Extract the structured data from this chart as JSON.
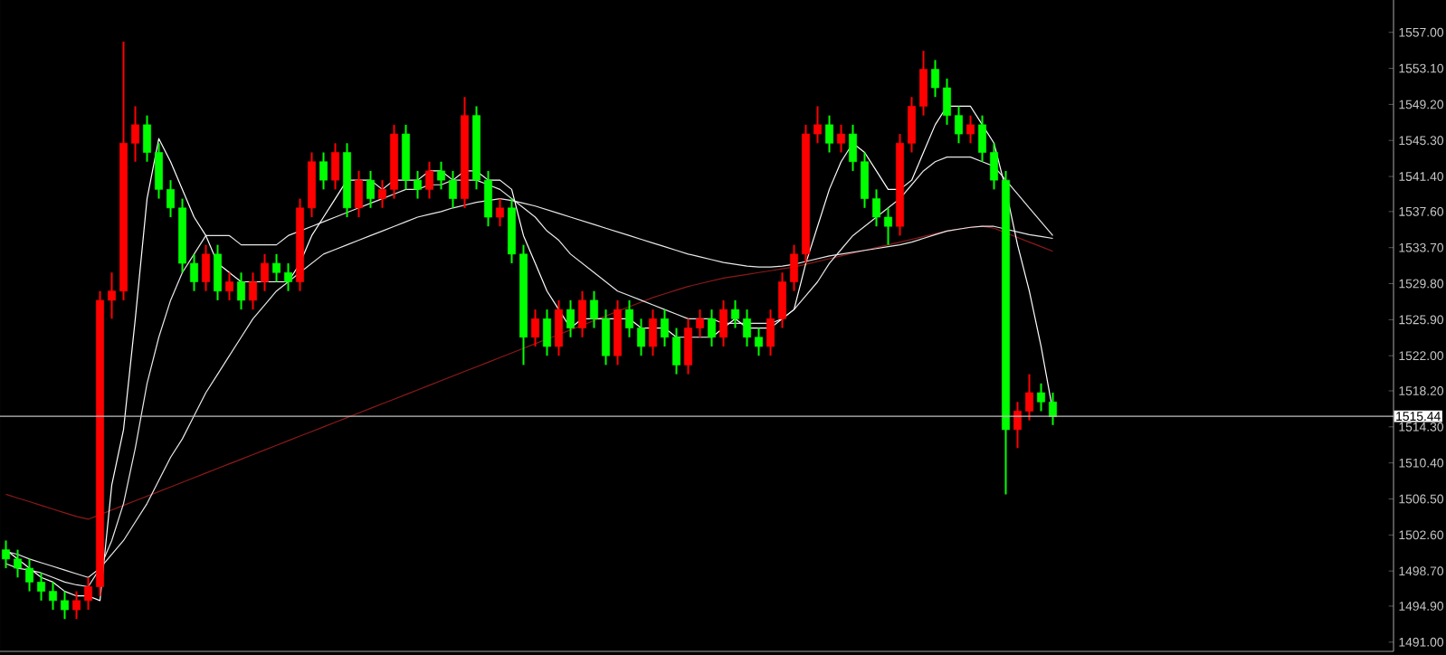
{
  "chart_data": {
    "type": "candlestick",
    "categories": [
      null,
      null,
      null,
      null,
      null,
      null,
      null,
      null,
      null,
      null,
      null,
      null,
      null,
      null,
      null,
      null,
      null,
      null,
      null,
      null,
      null,
      null,
      null,
      null,
      null,
      null,
      null,
      null,
      null,
      null,
      null,
      null,
      null,
      null,
      null,
      null,
      null,
      null,
      null,
      null,
      null,
      null,
      null,
      null,
      null,
      null,
      null,
      null,
      null,
      null,
      null,
      null,
      null,
      null,
      null,
      null,
      null,
      null,
      null,
      null,
      null,
      null,
      null,
      null,
      null,
      null,
      null,
      null,
      null,
      null,
      null,
      null,
      null,
      null,
      null,
      null,
      null,
      null,
      null,
      null,
      null,
      null,
      null,
      null,
      null,
      null,
      null,
      null,
      null,
      null
    ],
    "ohlc": [
      [
        1501,
        1502,
        1499,
        1500
      ],
      [
        1500,
        1501,
        1498,
        1499
      ],
      [
        1499,
        1500,
        1496.5,
        1497.5
      ],
      [
        1497.5,
        1498.5,
        1495.5,
        1496.5
      ],
      [
        1496.5,
        1497.5,
        1494.5,
        1495.5
      ],
      [
        1495.5,
        1496.5,
        1493.5,
        1494.5
      ],
      [
        1494.5,
        1496.5,
        1493.5,
        1495.5
      ],
      [
        1495.5,
        1498,
        1494.5,
        1497
      ],
      [
        1497,
        1529,
        1496,
        1528
      ],
      [
        1528,
        1531,
        1526,
        1529
      ],
      [
        1529,
        1556,
        1528,
        1545
      ],
      [
        1545,
        1549,
        1543,
        1547
      ],
      [
        1547,
        1548,
        1543,
        1544
      ],
      [
        1544,
        1545,
        1539,
        1540
      ],
      [
        1540,
        1541,
        1537,
        1538
      ],
      [
        1538,
        1539,
        1531,
        1532
      ],
      [
        1532,
        1533,
        1529,
        1530
      ],
      [
        1530,
        1534,
        1529,
        1533
      ],
      [
        1533,
        1534,
        1528,
        1529
      ],
      [
        1529,
        1531,
        1528,
        1530
      ],
      [
        1530,
        1531,
        1527,
        1528
      ],
      [
        1528,
        1531,
        1527,
        1530
      ],
      [
        1530,
        1533,
        1529,
        1532
      ],
      [
        1532,
        1533,
        1530,
        1531
      ],
      [
        1531,
        1532,
        1529,
        1530
      ],
      [
        1530,
        1539,
        1529,
        1538
      ],
      [
        1538,
        1544,
        1537,
        1543
      ],
      [
        1543,
        1544,
        1540,
        1541
      ],
      [
        1541,
        1545,
        1540,
        1544
      ],
      [
        1544,
        1545,
        1537,
        1538
      ],
      [
        1538,
        1542,
        1537,
        1541
      ],
      [
        1541,
        1542,
        1538,
        1539
      ],
      [
        1539,
        1541,
        1538,
        1540
      ],
      [
        1540,
        1547,
        1539,
        1546
      ],
      [
        1546,
        1547,
        1540,
        1541
      ],
      [
        1541,
        1542,
        1539,
        1540
      ],
      [
        1540,
        1543,
        1539,
        1542
      ],
      [
        1542,
        1543,
        1540,
        1541
      ],
      [
        1541,
        1542,
        1538,
        1539
      ],
      [
        1539,
        1550,
        1538,
        1548
      ],
      [
        1548,
        1549,
        1540,
        1541
      ],
      [
        1541,
        1542,
        1536,
        1537
      ],
      [
        1537,
        1539,
        1536,
        1538
      ],
      [
        1538,
        1539,
        1532,
        1533
      ],
      [
        1533,
        1534,
        1521,
        1524
      ],
      [
        1524,
        1527,
        1523,
        1526
      ],
      [
        1526,
        1527,
        1522,
        1523
      ],
      [
        1523,
        1528,
        1522,
        1527
      ],
      [
        1527,
        1528,
        1524,
        1525
      ],
      [
        1525,
        1529,
        1524,
        1528
      ],
      [
        1528,
        1529,
        1525,
        1526
      ],
      [
        1526,
        1527,
        1521,
        1522
      ],
      [
        1522,
        1528,
        1521,
        1527
      ],
      [
        1527,
        1528,
        1524,
        1525
      ],
      [
        1525,
        1526,
        1522,
        1523
      ],
      [
        1523,
        1527,
        1522,
        1526
      ],
      [
        1526,
        1527,
        1523,
        1524
      ],
      [
        1524,
        1525,
        1520,
        1521
      ],
      [
        1521,
        1526,
        1520,
        1525
      ],
      [
        1525,
        1527,
        1524,
        1526
      ],
      [
        1526,
        1527,
        1523,
        1524
      ],
      [
        1524,
        1528,
        1523,
        1527
      ],
      [
        1527,
        1528,
        1525,
        1526
      ],
      [
        1526,
        1527,
        1523,
        1524
      ],
      [
        1524,
        1525,
        1522,
        1523
      ],
      [
        1523,
        1527,
        1522,
        1526
      ],
      [
        1526,
        1531,
        1525,
        1530
      ],
      [
        1530,
        1534,
        1529,
        1533
      ],
      [
        1533,
        1547,
        1532,
        1546
      ],
      [
        1546,
        1549,
        1545,
        1547
      ],
      [
        1547,
        1548,
        1544,
        1545
      ],
      [
        1545,
        1547,
        1544,
        1546
      ],
      [
        1546,
        1547,
        1542,
        1543
      ],
      [
        1543,
        1544,
        1538,
        1539
      ],
      [
        1539,
        1540,
        1536,
        1537
      ],
      [
        1537,
        1538,
        1534,
        1536
      ],
      [
        1536,
        1546,
        1535,
        1545
      ],
      [
        1545,
        1550,
        1544,
        1549
      ],
      [
        1549,
        1555,
        1548,
        1553
      ],
      [
        1553,
        1554,
        1550,
        1551
      ],
      [
        1551,
        1552,
        1547,
        1548
      ],
      [
        1548,
        1549,
        1545,
        1546
      ],
      [
        1546,
        1548,
        1545,
        1547
      ],
      [
        1547,
        1548,
        1543,
        1544
      ],
      [
        1544,
        1545,
        1540,
        1541
      ],
      [
        1541,
        1542,
        1507,
        1514
      ],
      [
        1514,
        1517,
        1512,
        1516
      ],
      [
        1516,
        1520,
        1515,
        1518
      ],
      [
        1518,
        1519,
        1516,
        1517
      ],
      [
        1517,
        1518,
        1514.5,
        1515.4
      ]
    ],
    "colors": [
      "#00ff00",
      "#00ff00",
      "#00ff00",
      "#00ff00",
      "#00ff00",
      "#00ff00",
      "#ff0000",
      "#ff0000",
      "#ff0000",
      "#ff0000",
      "#ff0000",
      "#ff0000",
      "#00ff00",
      "#00ff00",
      "#00ff00",
      "#00ff00",
      "#00ff00",
      "#ff0000",
      "#00ff00",
      "#ff0000",
      "#00ff00",
      "#ff0000",
      "#ff0000",
      "#00ff00",
      "#00ff00",
      "#ff0000",
      "#ff0000",
      "#00ff00",
      "#ff0000",
      "#00ff00",
      "#ff0000",
      "#00ff00",
      "#ff0000",
      "#ff0000",
      "#00ff00",
      "#00ff00",
      "#ff0000",
      "#00ff00",
      "#00ff00",
      "#ff0000",
      "#00ff00",
      "#00ff00",
      "#ff0000",
      "#00ff00",
      "#00ff00",
      "#ff0000",
      "#00ff00",
      "#ff0000",
      "#00ff00",
      "#ff0000",
      "#00ff00",
      "#00ff00",
      "#ff0000",
      "#00ff00",
      "#00ff00",
      "#ff0000",
      "#00ff00",
      "#00ff00",
      "#ff0000",
      "#ff0000",
      "#00ff00",
      "#ff0000",
      "#00ff00",
      "#00ff00",
      "#00ff00",
      "#ff0000",
      "#ff0000",
      "#ff0000",
      "#ff0000",
      "#ff0000",
      "#00ff00",
      "#ff0000",
      "#00ff00",
      "#00ff00",
      "#00ff00",
      "#00ff00",
      "#ff0000",
      "#ff0000",
      "#ff0000",
      "#00ff00",
      "#00ff00",
      "#00ff00",
      "#ff0000",
      "#00ff00",
      "#00ff00",
      "#00ff00",
      "#ff0000",
      "#ff0000",
      "#00ff00",
      "#00ff00"
    ],
    "series": [
      {
        "type": "line",
        "color": "#8b1a1a",
        "values": [
          1507,
          1506.6,
          1506.2,
          1505.8,
          1505.4,
          1505,
          1504.6,
          1504.3,
          1504.8,
          1505.3,
          1505.8,
          1506.3,
          1506.8,
          1507.3,
          1507.8,
          1508.3,
          1508.8,
          1509.3,
          1509.8,
          1510.3,
          1510.8,
          1511.3,
          1511.8,
          1512.3,
          1512.8,
          1513.3,
          1513.8,
          1514.3,
          1514.8,
          1515.3,
          1515.8,
          1516.3,
          1516.8,
          1517.3,
          1517.8,
          1518.3,
          1518.8,
          1519.3,
          1519.8,
          1520.3,
          1520.8,
          1521.3,
          1521.8,
          1522.3,
          1522.8,
          1523.3,
          1523.8,
          1524.3,
          1524.8,
          1525.3,
          1525.8,
          1526.3,
          1526.8,
          1527.3,
          1527.8,
          1528.3,
          1528.7,
          1529.1,
          1529.5,
          1529.8,
          1530.1,
          1530.4,
          1530.6,
          1530.8,
          1531,
          1531.2,
          1531.4,
          1531.6,
          1531.9,
          1532.2,
          1532.5,
          1532.8,
          1533.1,
          1533.4,
          1533.7,
          1534,
          1534.3,
          1534.6,
          1534.9,
          1535.2,
          1535.5,
          1535.7,
          1535.9,
          1536,
          1535.8,
          1535.3,
          1534.8,
          1534.3,
          1533.8,
          1533.3
        ]
      },
      {
        "type": "line",
        "color": "#e8e8e8",
        "values": [
          1500.8,
          1500.5,
          1500,
          1499.6,
          1499.2,
          1498.8,
          1498.4,
          1498,
          1499,
          1500.5,
          1502,
          1504,
          1506,
          1508.5,
          1511,
          1513,
          1515.5,
          1518,
          1520,
          1522,
          1524,
          1526,
          1527.5,
          1529,
          1530,
          1531,
          1532,
          1533,
          1533.5,
          1534,
          1534.5,
          1535,
          1535.5,
          1536,
          1536.5,
          1537,
          1537.3,
          1537.6,
          1538,
          1538.3,
          1538.6,
          1538.8,
          1539,
          1538.8,
          1538.5,
          1538.2,
          1537.8,
          1537.4,
          1537,
          1536.6,
          1536.2,
          1535.8,
          1535.4,
          1535,
          1534.6,
          1534.2,
          1533.8,
          1533.4,
          1533,
          1532.7,
          1532.4,
          1532.1,
          1531.9,
          1531.7,
          1531.6,
          1531.6,
          1531.7,
          1531.9,
          1532.2,
          1532.5,
          1532.8,
          1533,
          1533.2,
          1533.4,
          1533.6,
          1533.8,
          1534,
          1534.3,
          1534.7,
          1535.1,
          1535.5,
          1535.7,
          1535.9,
          1536,
          1536,
          1535.7,
          1535.4,
          1535.1,
          1534.9,
          1534.7
        ]
      },
      {
        "type": "line",
        "color": "#e8e8e8",
        "values": [
          1499.5,
          1499,
          1498.8,
          1498.5,
          1498,
          1497.5,
          1497.2,
          1497,
          1499,
          1502,
          1506,
          1512,
          1519,
          1524,
          1528,
          1531,
          1533,
          1535,
          1535,
          1535,
          1534,
          1534,
          1534,
          1534,
          1535,
          1535.5,
          1536,
          1536.5,
          1537,
          1537.5,
          1538,
          1538.5,
          1539,
          1539.5,
          1540,
          1540,
          1540.5,
          1540.5,
          1541,
          1541,
          1541,
          1540.5,
          1540,
          1539,
          1538,
          1537,
          1535.5,
          1534.5,
          1533,
          1532,
          1531,
          1530,
          1529,
          1528.5,
          1528,
          1527.5,
          1527,
          1526.5,
          1526,
          1526,
          1526,
          1525.5,
          1525.5,
          1525.5,
          1525.5,
          1525.5,
          1526,
          1527,
          1528.5,
          1530,
          1532,
          1533.5,
          1535,
          1536,
          1537,
          1538,
          1539,
          1540.5,
          1542,
          1543,
          1543.5,
          1543.5,
          1543.5,
          1543,
          1542.5,
          1541,
          1539.5,
          1538,
          1536.5,
          1535
        ]
      },
      {
        "type": "line",
        "color": "#ffffff",
        "values": [
          1501,
          1500,
          1499,
          1498,
          1497.5,
          1496.5,
          1496,
          1496,
          1495.5,
          1508,
          1514,
          1526,
          1539,
          1545.5,
          1543,
          1540,
          1537,
          1535,
          1532,
          1531,
          1530,
          1530,
          1530,
          1530,
          1530,
          1532,
          1535,
          1537,
          1539,
          1541,
          1541,
          1541,
          1540,
          1541,
          1541,
          1541,
          1542,
          1542,
          1541,
          1542,
          1542,
          1541,
          1541,
          1540,
          1535,
          1532,
          1529,
          1527,
          1525,
          1526,
          1526,
          1526,
          1526,
          1526,
          1525,
          1525,
          1525,
          1524,
          1524,
          1524,
          1524,
          1525,
          1526,
          1525,
          1525,
          1525,
          1526,
          1527,
          1532,
          1536,
          1540,
          1543,
          1545,
          1544,
          1542,
          1540,
          1540,
          1541,
          1544,
          1547,
          1549,
          1549,
          1549,
          1547,
          1545,
          1540,
          1534,
          1529,
          1523,
          1516
        ]
      }
    ],
    "ylim": [
      1490.0,
      1560.5
    ],
    "yticks": [
      {
        "value": 1557,
        "label": "1557.00"
      },
      {
        "value": 1553.1,
        "label": "1553.10"
      },
      {
        "value": 1549.2,
        "label": "1549.20"
      },
      {
        "value": 1545.3,
        "label": "1545.30"
      },
      {
        "value": 1541.4,
        "label": "1541.40"
      },
      {
        "value": 1537.6,
        "label": "1537.60"
      },
      {
        "value": 1533.7,
        "label": "1533.70"
      },
      {
        "value": 1529.8,
        "label": "1529.80"
      },
      {
        "value": 1525.9,
        "label": "1525.90"
      },
      {
        "value": 1522,
        "label": "1522.00"
      },
      {
        "value": 1518.2,
        "label": "1518.20"
      },
      {
        "value": 1514.3,
        "label": "1514.30"
      },
      {
        "value": 1510.4,
        "label": "1510.40"
      },
      {
        "value": 1506.5,
        "label": "1506.50"
      },
      {
        "value": 1502.6,
        "label": "1502.60"
      },
      {
        "value": 1498.7,
        "label": "1498.70"
      },
      {
        "value": 1494.9,
        "label": "1494.90"
      },
      {
        "value": 1491,
        "label": "1491.00"
      }
    ],
    "ref_lines": [
      {
        "axis": "y",
        "value": 1515.44,
        "label": "1515.44",
        "color": "#c0c0c0"
      }
    ]
  }
}
